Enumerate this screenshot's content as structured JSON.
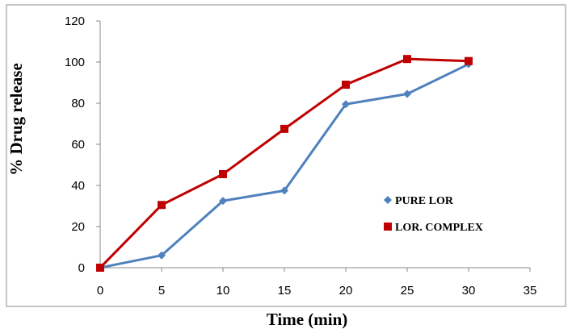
{
  "chart_data": {
    "type": "line",
    "title": "",
    "xlabel": "Time (min)",
    "ylabel": "% Drug release",
    "xlim": [
      0,
      35
    ],
    "ylim": [
      0,
      120
    ],
    "xticks": [
      0,
      5,
      10,
      15,
      20,
      25,
      30,
      35
    ],
    "yticks": [
      0,
      20,
      40,
      60,
      80,
      100,
      120
    ],
    "grid": false,
    "legend_position": "right",
    "series": [
      {
        "name": "PURE LOR",
        "color": "#4f81bd",
        "marker": "diamond",
        "x": [
          0,
          5,
          10,
          15,
          20,
          25,
          30
        ],
        "values": [
          0,
          6,
          32.5,
          37.5,
          79.5,
          84.5,
          99
        ]
      },
      {
        "name": "LOR. COMPLEX",
        "color": "#c00000",
        "marker": "square",
        "x": [
          0,
          5,
          10,
          15,
          20,
          25,
          30
        ],
        "values": [
          0,
          30.5,
          45.5,
          67.5,
          89,
          101.5,
          100.5
        ]
      }
    ]
  }
}
